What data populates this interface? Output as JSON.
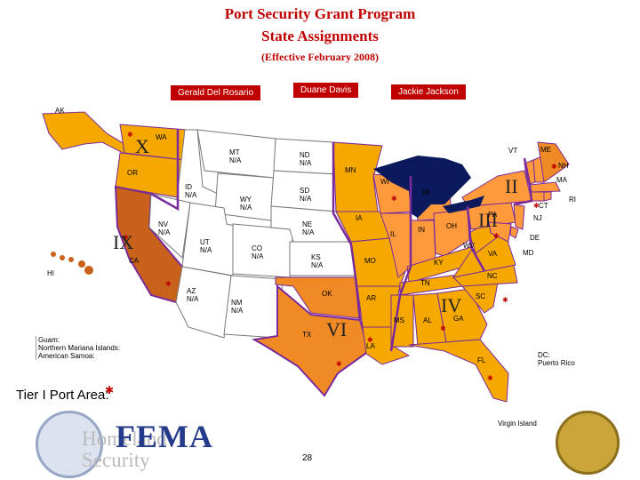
{
  "header": {
    "title_line1": "Port Security Grant Program",
    "title_line2": "State Assignments",
    "subtitle": "(Effective February 2008)"
  },
  "assignees": {
    "rosario": "Gerald Del Rosario",
    "davis": "Duane Davis",
    "jackson": "Jackie Jackson"
  },
  "colors": {
    "region_x": "#f5a800",
    "region_ix": "#c8621a",
    "region_vi_gray": "#f08a24",
    "region_iii": "#f5a800",
    "region_iv": "#f5a800",
    "region_orange": "#ff9a3c",
    "no_port": "#ffffff",
    "lakes": "#0a1a5c",
    "border": "#7a2a9a",
    "accent_red": "#c00000"
  },
  "regions": {
    "x": "X",
    "ix": "IX",
    "vi": "VI",
    "iv": "IV",
    "iii": "III",
    "ii": "II"
  },
  "states": {
    "ak": "AK",
    "wa": "WA",
    "or": "OR",
    "ca": "CA",
    "hi": "HI",
    "mt": "MT",
    "mt_na": "N/A",
    "id": "ID",
    "id_na": "N/A",
    "nv": "NV",
    "nv_na": "N/A",
    "ut": "UT",
    "ut_na": "N/A",
    "az": "AZ",
    "az_na": "N/A",
    "wy": "WY",
    "wy_na": "N/A",
    "co": "CO",
    "co_na": "N/A",
    "nm": "NM",
    "nm_na": "N/A",
    "nd": "ND",
    "nd_na": "N/A",
    "sd": "SD",
    "sd_na": "N/A",
    "ne": "NE",
    "ne_na": "N/A",
    "ks": "KS",
    "ks_na": "N/A",
    "ok": "OK",
    "tx": "TX",
    "mn": "MN",
    "ia": "IA",
    "mo": "MO",
    "ar": "AR",
    "la": "LA",
    "wi": "WI",
    "il": "IL",
    "mi": "MI",
    "in": "IN",
    "oh": "OH",
    "ky": "KY",
    "tn": "TN",
    "ms": "MS",
    "al": "AL",
    "ga": "GA",
    "fl": "FL",
    "sc": "SC",
    "nc": "NC",
    "va": "VA",
    "wv": "WV",
    "pa": "PA",
    "ny": "",
    "vt": "VT",
    "me": "ME",
    "nh": "NH",
    "ma": "MA",
    "ri": "RI",
    "ct": "CT",
    "nj": "NJ",
    "de": "DE",
    "md": "MD"
  },
  "notes": {
    "guam": "Guam:",
    "cnmi": "Northern Mariana Islands:",
    "samoa": "American Samoa:"
  },
  "legend": {
    "tier1": "Tier I Port Area:",
    "tier1_icon": "star-burst-icon"
  },
  "territories": {
    "dc": "DC:",
    "pr": "Puerto Rico",
    "vi": "Virgin Island"
  },
  "footer": {
    "page_number": "28",
    "hs_text_1": "Homeland",
    "hs_text_2": "Security",
    "fema": "FEMA"
  }
}
